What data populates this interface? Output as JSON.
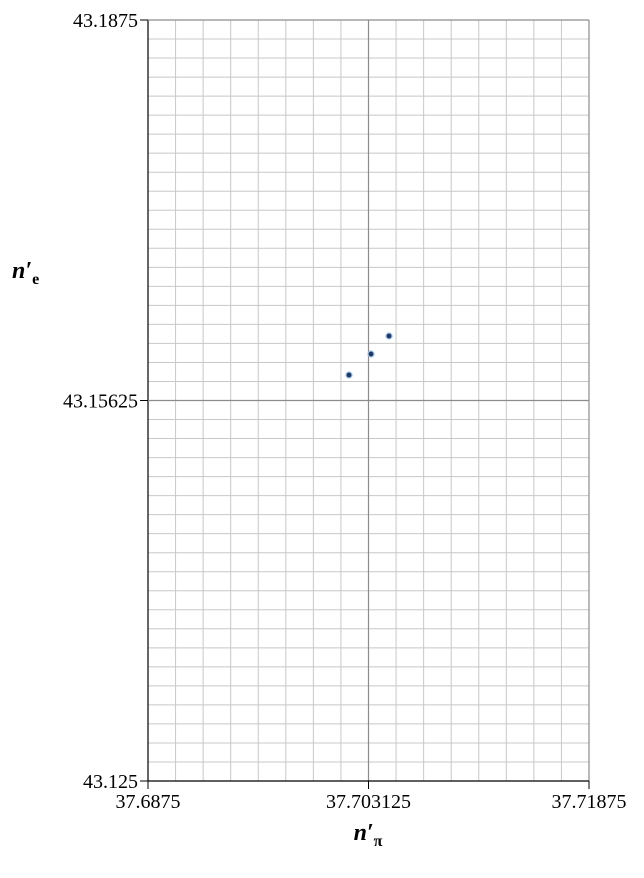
{
  "chart_data": {
    "type": "scatter",
    "xlabel": {
      "text": "n′",
      "sub": "π"
    },
    "ylabel": {
      "text": "n′",
      "sub": "e"
    },
    "x": [
      37.701743,
      37.703302,
      37.704578
    ],
    "values": [
      43.158344,
      43.160069,
      43.161547
    ],
    "color": "#1f3864",
    "xlim": [
      37.6875,
      37.71875
    ],
    "xticks": [
      37.6875,
      37.703125,
      37.71875
    ],
    "ylim": [
      43.125,
      43.1875
    ],
    "yticks": [
      43.125,
      43.15625,
      43.1875
    ],
    "grid": true,
    "minor_grid": {
      "x": 8,
      "y": 20
    }
  }
}
